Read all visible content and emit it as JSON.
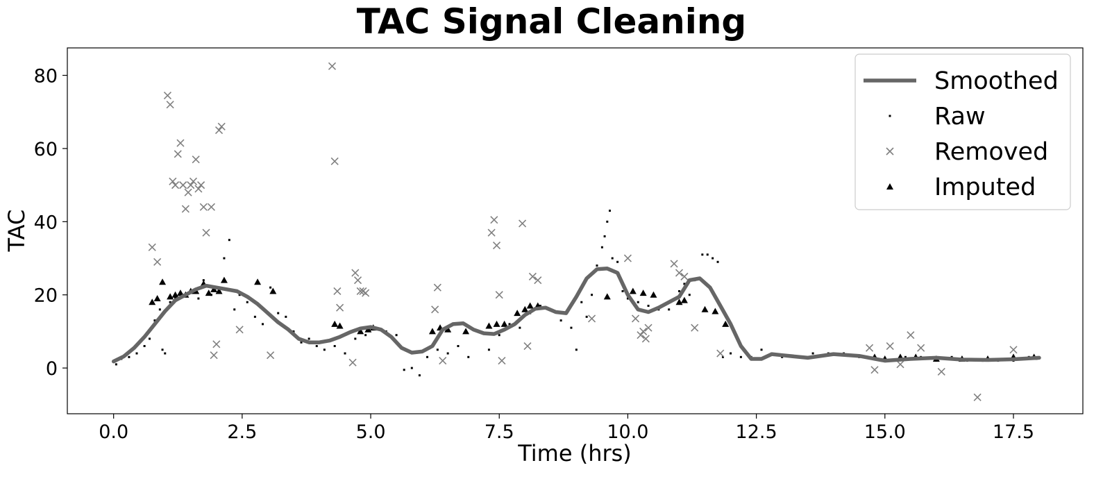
{
  "chart_data": {
    "type": "scatter",
    "title": "TAC Signal Cleaning",
    "xlabel": "Time (hrs)",
    "ylabel": "TAC",
    "xlim": [
      -0.9,
      18.85
    ],
    "ylim": [
      -12.5,
      87.5
    ],
    "xticks": [
      0.0,
      2.5,
      5.0,
      7.5,
      10.0,
      12.5,
      15.0,
      17.5
    ],
    "xtick_labels": [
      "0.0",
      "2.5",
      "5.0",
      "7.5",
      "10.0",
      "12.5",
      "15.0",
      "17.5"
    ],
    "yticks": [
      0,
      20,
      40,
      60,
      80
    ],
    "ytick_labels": [
      "0",
      "20",
      "40",
      "60",
      "80"
    ],
    "grid": false,
    "legend": {
      "position": "top-right",
      "entries": [
        "Smoothed",
        "Raw",
        "Removed",
        "Imputed"
      ]
    },
    "colors": {
      "smoothed": "#666666",
      "raw": "#000000",
      "removed": "#808080",
      "imputed": "#000000"
    },
    "series": [
      {
        "name": "Smoothed",
        "marker": "line",
        "x": [
          0.0,
          0.2,
          0.4,
          0.6,
          0.8,
          1.0,
          1.2,
          1.4,
          1.6,
          1.8,
          2.0,
          2.2,
          2.4,
          2.6,
          2.8,
          3.0,
          3.2,
          3.4,
          3.6,
          3.8,
          4.0,
          4.2,
          4.4,
          4.6,
          4.8,
          5.0,
          5.2,
          5.4,
          5.6,
          5.8,
          6.0,
          6.2,
          6.4,
          6.6,
          6.8,
          7.0,
          7.2,
          7.4,
          7.6,
          7.8,
          8.0,
          8.2,
          8.4,
          8.6,
          8.8,
          9.0,
          9.2,
          9.4,
          9.6,
          9.8,
          10.0,
          10.2,
          10.4,
          10.6,
          10.8,
          11.0,
          11.2,
          11.4,
          11.6,
          11.8,
          12.0,
          12.2,
          12.4,
          12.6,
          12.8,
          13.0,
          13.5,
          14.0,
          14.5,
          15.0,
          15.5,
          16.0,
          16.5,
          17.0,
          17.5,
          18.0
        ],
        "y": [
          1.8,
          3.2,
          5.5,
          8.5,
          12,
          15.5,
          18.5,
          20,
          21.5,
          22.5,
          22,
          21.5,
          21,
          19.5,
          17.5,
          15,
          12.5,
          10.5,
          8,
          7,
          7,
          7.5,
          8.5,
          9.8,
          10.8,
          11.2,
          10.5,
          8.5,
          5.5,
          4.2,
          4.5,
          6,
          10.5,
          12,
          12.2,
          10.5,
          9.5,
          9.3,
          10.5,
          12,
          14.5,
          16.2,
          16.5,
          15.3,
          15,
          19.5,
          24.5,
          27,
          27.2,
          26,
          20,
          16,
          15.3,
          16.5,
          18,
          19.5,
          24,
          24.5,
          22,
          17,
          12,
          6,
          2.5,
          2.5,
          3.8,
          3.5,
          2.8,
          3.8,
          3.3,
          2,
          2.5,
          2.8,
          2.3,
          2.2,
          2.4,
          2.8
        ]
      },
      {
        "name": "Raw",
        "marker": "dot",
        "x": [
          0.05,
          0.15,
          0.3,
          0.45,
          0.6,
          0.7,
          0.8,
          0.9,
          0.95,
          1.0,
          1.1,
          1.2,
          1.35,
          1.5,
          1.65,
          1.75,
          1.9,
          2.05,
          2.15,
          2.25,
          2.35,
          2.45,
          2.6,
          2.75,
          2.9,
          3.05,
          3.2,
          3.35,
          3.5,
          3.65,
          3.8,
          3.95,
          4.1,
          4.3,
          4.5,
          4.7,
          4.9,
          5.1,
          5.3,
          5.5,
          5.65,
          5.8,
          5.95,
          6.1,
          6.3,
          6.5,
          6.7,
          6.9,
          7.1,
          7.3,
          7.5,
          7.7,
          7.9,
          8.1,
          8.3,
          8.5,
          8.7,
          8.9,
          9.0,
          9.1,
          9.2,
          9.3,
          9.4,
          9.5,
          9.55,
          9.6,
          9.65,
          9.7,
          9.8,
          9.9,
          10.0,
          10.2,
          10.4,
          10.6,
          10.8,
          11.0,
          11.1,
          11.2,
          11.3,
          11.45,
          11.55,
          11.65,
          11.75,
          11.85,
          12.0,
          12.2,
          12.4,
          12.6,
          12.8,
          13.0,
          13.3,
          13.6,
          13.9,
          14.2,
          14.5,
          14.8,
          15.1,
          15.4,
          15.7,
          16.0,
          16.3,
          16.6,
          16.9,
          17.2,
          17.5,
          17.8
        ],
        "y": [
          1,
          2.5,
          3,
          4,
          6,
          8,
          13,
          16,
          5,
          4,
          18,
          19,
          20,
          21,
          19,
          24,
          20,
          22,
          30,
          35,
          16,
          20,
          18,
          14,
          12,
          22,
          15,
          14,
          10,
          7,
          8,
          6,
          5,
          6,
          4,
          8,
          9,
          11,
          10,
          9,
          -0.5,
          0,
          -2,
          3,
          5,
          4,
          6,
          3,
          10,
          5,
          9,
          12,
          11,
          15,
          17,
          16,
          13,
          11,
          5,
          18,
          14,
          20,
          28,
          33,
          36,
          40,
          43,
          30,
          29,
          21,
          19,
          18,
          17,
          16,
          16,
          21,
          23,
          20,
          24,
          31,
          31,
          30,
          29,
          3,
          4,
          3,
          3,
          5,
          4,
          3,
          3,
          4,
          4,
          4,
          3,
          3,
          2,
          3,
          3,
          2,
          3,
          2,
          2,
          2,
          2,
          3
        ]
      },
      {
        "name": "Removed",
        "marker": "x",
        "x": [
          0.75,
          0.85,
          1.05,
          1.1,
          1.15,
          1.2,
          1.25,
          1.3,
          1.35,
          1.4,
          1.45,
          1.5,
          1.55,
          1.6,
          1.65,
          1.7,
          1.75,
          1.8,
          1.9,
          1.95,
          2.0,
          2.05,
          2.1,
          2.45,
          3.05,
          4.25,
          4.3,
          4.35,
          4.4,
          4.65,
          4.7,
          4.75,
          4.8,
          4.85,
          4.9,
          6.25,
          6.3,
          6.4,
          7.35,
          7.4,
          7.45,
          7.5,
          7.55,
          7.95,
          8.05,
          8.15,
          8.25,
          9.3,
          10.0,
          10.15,
          10.25,
          10.3,
          10.35,
          10.4,
          10.9,
          11.0,
          11.1,
          11.3,
          11.8,
          14.7,
          14.8,
          15.1,
          15.3,
          15.5,
          15.7,
          16.1,
          16.8,
          17.5
        ],
        "y": [
          33,
          29,
          74.5,
          72,
          51,
          50,
          58.5,
          61.5,
          50,
          43.5,
          48,
          50,
          51,
          57,
          49,
          50,
          44,
          37,
          44,
          3.5,
          6.5,
          65,
          66,
          10.5,
          3.5,
          82.5,
          56.5,
          21,
          16.5,
          1.5,
          26,
          24,
          21,
          21,
          20.5,
          16,
          22,
          2,
          37,
          40.5,
          33.5,
          20,
          2,
          39.5,
          6,
          25,
          24,
          13.5,
          30,
          13.5,
          9,
          10,
          8,
          11,
          28.5,
          26,
          25,
          11,
          4,
          5.5,
          -0.5,
          6,
          1,
          9,
          5.5,
          -1,
          -8,
          5
        ]
      },
      {
        "name": "Imputed",
        "marker": "triangle",
        "x": [
          0.75,
          0.85,
          0.95,
          1.1,
          1.2,
          1.3,
          1.4,
          1.5,
          1.6,
          1.75,
          1.85,
          1.95,
          2.05,
          2.15,
          2.8,
          3.1,
          4.3,
          4.4,
          4.8,
          4.95,
          5.05,
          6.2,
          6.35,
          6.5,
          6.85,
          7.3,
          7.45,
          7.6,
          7.85,
          8.0,
          8.1,
          8.25,
          9.6,
          10.1,
          10.3,
          10.5,
          11.0,
          11.1,
          11.5,
          11.7,
          11.9,
          14.8,
          15.0,
          15.3,
          15.6,
          16.0,
          16.5,
          17.0,
          17.5,
          17.9
        ],
        "y": [
          18,
          19,
          23.5,
          19.5,
          20,
          20.5,
          20,
          21,
          21,
          23,
          20.5,
          21.5,
          21,
          24,
          23.5,
          21,
          12,
          11.5,
          10,
          10.5,
          11,
          10,
          11,
          10.5,
          10,
          11.5,
          12,
          12,
          15,
          16,
          17,
          17,
          19.5,
          21,
          20.5,
          20,
          18,
          18.5,
          16,
          15.5,
          12,
          3,
          2.5,
          3,
          3,
          2.5,
          2.5,
          2.5,
          3,
          3
        ]
      }
    ]
  }
}
